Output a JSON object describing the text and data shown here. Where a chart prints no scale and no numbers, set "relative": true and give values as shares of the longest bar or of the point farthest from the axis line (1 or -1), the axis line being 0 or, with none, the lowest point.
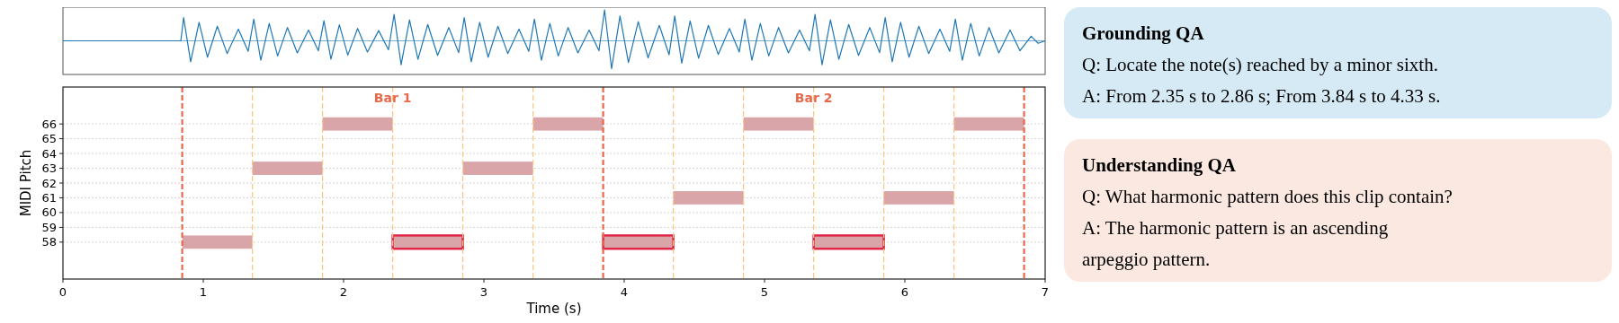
{
  "chart_data": [
    {
      "type": "line",
      "relative": true,
      "xlim": [
        0,
        7
      ],
      "ref_lines": [
        {
          "axis": "y",
          "value": 0,
          "color": "#1f77b4"
        }
      ],
      "x": [
        0,
        0.84,
        0.86,
        0.91,
        0.97,
        1.03,
        1.1,
        1.17,
        1.25,
        1.32,
        1.36,
        1.41,
        1.47,
        1.53,
        1.6,
        1.67,
        1.75,
        1.82,
        1.86,
        1.91,
        1.97,
        2.03,
        2.1,
        2.17,
        2.25,
        2.32,
        2.36,
        2.41,
        2.47,
        2.53,
        2.6,
        2.67,
        2.75,
        2.82,
        2.86,
        2.91,
        2.97,
        3.03,
        3.1,
        3.17,
        3.25,
        3.32,
        3.36,
        3.41,
        3.47,
        3.53,
        3.6,
        3.67,
        3.75,
        3.82,
        3.86,
        3.91,
        3.97,
        4.03,
        4.1,
        4.17,
        4.25,
        4.32,
        4.36,
        4.41,
        4.47,
        4.53,
        4.6,
        4.67,
        4.75,
        4.82,
        4.86,
        4.91,
        4.97,
        5.03,
        5.1,
        5.17,
        5.25,
        5.32,
        5.36,
        5.41,
        5.47,
        5.53,
        5.6,
        5.67,
        5.75,
        5.82,
        5.86,
        5.91,
        5.97,
        6.03,
        6.1,
        6.17,
        6.25,
        6.32,
        6.36,
        6.41,
        6.47,
        6.53,
        6.6,
        6.67,
        6.75,
        6.82,
        6.9,
        6.95,
        7
      ],
      "series": [
        {
          "color": "#1f77b4",
          "values": [
            0,
            0,
            0.75,
            -0.68,
            0.6,
            -0.53,
            0.47,
            -0.41,
            0.38,
            -0.34,
            0.7,
            -0.63,
            0.56,
            -0.49,
            0.43,
            -0.39,
            0.35,
            -0.32,
            0.65,
            -0.59,
            0.52,
            -0.46,
            0.4,
            -0.36,
            0.33,
            -0.29,
            0.85,
            -0.77,
            0.68,
            -0.6,
            0.53,
            -0.47,
            0.43,
            -0.38,
            0.75,
            -0.68,
            0.6,
            -0.53,
            0.47,
            -0.41,
            0.38,
            -0.34,
            0.7,
            -0.63,
            0.56,
            -0.49,
            0.43,
            -0.39,
            0.35,
            -0.32,
            1,
            -0.9,
            0.8,
            -0.7,
            0.62,
            -0.55,
            0.5,
            -0.45,
            0.8,
            -0.72,
            0.64,
            -0.56,
            0.5,
            -0.44,
            0.4,
            -0.36,
            0.7,
            -0.63,
            0.56,
            -0.49,
            0.43,
            -0.39,
            0.35,
            -0.32,
            0.85,
            -0.77,
            0.68,
            -0.6,
            0.53,
            -0.47,
            0.43,
            -0.38,
            0.75,
            -0.68,
            0.6,
            -0.53,
            0.47,
            -0.41,
            0.38,
            -0.34,
            0.7,
            -0.63,
            0.56,
            -0.49,
            0.43,
            -0.39,
            0.35,
            -0.32,
            0.15,
            -0.08,
            0
          ]
        }
      ]
    },
    {
      "type": "bar",
      "orientation": "horizontal",
      "xlabel": "Time (s)",
      "ylabel": "MIDI Pitch",
      "xlim": [
        0,
        7
      ],
      "xticks": [
        0,
        1,
        2,
        3,
        4,
        5,
        6,
        7
      ],
      "grid": "y",
      "categories": [
        null,
        null,
        "66",
        "65",
        "64",
        "63",
        "62",
        "61",
        "60",
        "59",
        "58",
        null,
        null
      ],
      "series": [
        {
          "color": "#d9a5a9",
          "base": [
            null,
            null,
            1.85,
            null,
            null,
            1.35,
            null,
            4.35,
            null,
            null,
            0.85,
            null,
            null
          ],
          "values": [
            null,
            null,
            0.5,
            null,
            null,
            0.5,
            null,
            0.5,
            null,
            null,
            0.5,
            null,
            null
          ]
        },
        {
          "color": "#d9a5a9",
          "base": [
            null,
            null,
            3.35,
            null,
            null,
            2.85,
            null,
            5.85,
            null,
            null,
            null,
            null,
            null
          ],
          "values": [
            null,
            null,
            0.5,
            null,
            null,
            0.5,
            null,
            0.5,
            null,
            null,
            null,
            null,
            null
          ]
        },
        {
          "color": "#d9a5a9",
          "base": [
            null,
            null,
            4.85,
            null,
            null,
            null,
            null,
            null,
            null,
            null,
            null,
            null,
            null
          ],
          "values": [
            null,
            null,
            0.5,
            null,
            null,
            null,
            null,
            null,
            null,
            null,
            null,
            null,
            null
          ]
        },
        {
          "color": "#d9a5a9",
          "base": [
            null,
            null,
            6.35,
            null,
            null,
            null,
            null,
            null,
            null,
            null,
            null,
            null,
            null
          ],
          "values": [
            null,
            null,
            0.5,
            null,
            null,
            null,
            null,
            null,
            null,
            null,
            null,
            null,
            null
          ]
        },
        {
          "color": "#e0284b",
          "base": [
            null,
            null,
            null,
            null,
            null,
            null,
            null,
            null,
            null,
            null,
            2.35,
            null,
            null
          ],
          "values": [
            null,
            null,
            null,
            null,
            null,
            null,
            null,
            null,
            null,
            null,
            0.5,
            null,
            null
          ]
        },
        {
          "color": "#e0284b",
          "base": [
            null,
            null,
            null,
            null,
            null,
            null,
            null,
            null,
            null,
            null,
            3.85,
            null,
            null
          ],
          "values": [
            null,
            null,
            null,
            null,
            null,
            null,
            null,
            null,
            null,
            null,
            0.5,
            null,
            null
          ]
        },
        {
          "color": "#e0284b",
          "base": [
            null,
            null,
            null,
            null,
            null,
            null,
            null,
            null,
            null,
            null,
            5.35,
            null,
            null
          ],
          "values": [
            null,
            null,
            null,
            null,
            null,
            null,
            null,
            null,
            null,
            null,
            0.5,
            null,
            null
          ]
        }
      ],
      "ref_lines": [
        {
          "axis": "x",
          "value": 0.85,
          "color": "#e8694a",
          "line_style": "dashed"
        },
        {
          "axis": "x",
          "value": 3.85,
          "color": "#e8694a",
          "line_style": "dashed"
        },
        {
          "axis": "x",
          "value": 6.85,
          "color": "#e8694a",
          "line_style": "dashed"
        },
        {
          "axis": "x",
          "value": 1.35,
          "color": "#fdc57f",
          "line_style": "dashed"
        },
        {
          "axis": "x",
          "value": 1.85,
          "color": "#fdc57f",
          "line_style": "dashed"
        },
        {
          "axis": "x",
          "value": 2.35,
          "color": "#fdc57f",
          "line_style": "dashed"
        },
        {
          "axis": "x",
          "value": 2.85,
          "color": "#fdc57f",
          "line_style": "dashed"
        },
        {
          "axis": "x",
          "value": 3.35,
          "color": "#fdc57f",
          "line_style": "dashed"
        },
        {
          "axis": "x",
          "value": 4.35,
          "color": "#fdc57f",
          "line_style": "dashed"
        },
        {
          "axis": "x",
          "value": 4.85,
          "color": "#fdc57f",
          "line_style": "dashed"
        },
        {
          "axis": "x",
          "value": 5.35,
          "color": "#fdc57f",
          "line_style": "dashed"
        },
        {
          "axis": "x",
          "value": 5.85,
          "color": "#fdc57f",
          "line_style": "dashed"
        },
        {
          "axis": "x",
          "value": 6.35,
          "color": "#fdc57f",
          "line_style": "dashed"
        }
      ],
      "annotations": [
        {
          "text": "Bar 1",
          "x": 2.35
        },
        {
          "text": "Bar 2",
          "x": 5.35
        }
      ]
    },
    {
      "type": "other",
      "color": "#d5eaf5",
      "title": "Grounding QA",
      "annotations": [
        "Q: Locate the note(s) reached by a minor sixth.",
        "A: From 2.35 s to 2.86 s; From 3.84 s to 4.33 s."
      ]
    },
    {
      "type": "other",
      "color": "#fbe8e0",
      "title": "Understanding QA",
      "annotations": [
        "Q: What harmonic pattern does this clip contain?",
        "A: The harmonic pattern is an ascending",
        "arpeggio pattern."
      ]
    }
  ]
}
